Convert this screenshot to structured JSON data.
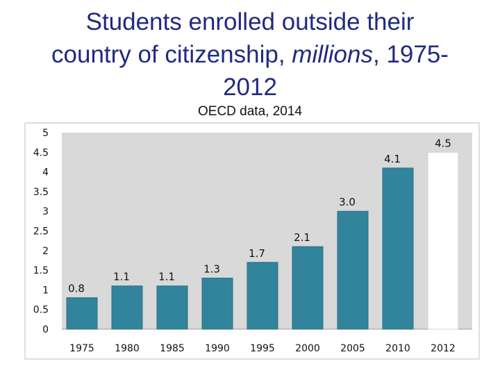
{
  "slide": {
    "title_lines": [
      "Students enrolled outside their",
      "country of citizenship, ",
      "millions",
      ", 1975-",
      "2012"
    ],
    "subtitle": "OECD data, 2014"
  },
  "colors": {
    "title": "#1f2a80",
    "bar": "#31849b",
    "bar_highlight": "#ffffff",
    "plot_bg": "#d9d9d9"
  },
  "chart_data": {
    "type": "bar",
    "categories": [
      "1975",
      "1980",
      "1985",
      "1990",
      "1995",
      "2000",
      "2005",
      "2010",
      "2012"
    ],
    "values": [
      0.8,
      1.1,
      1.1,
      1.3,
      1.7,
      2.1,
      3.0,
      4.1,
      4.5
    ],
    "value_labels": [
      "0.8",
      "1.1",
      "1.1",
      "1.3",
      "1.7",
      "2.1",
      "3.0",
      "4.1",
      "4.5"
    ],
    "highlighted_category": "2012",
    "title": "Students enrolled outside their country of citizenship, millions, 1975-2012",
    "subtitle": "OECD data, 2014",
    "xlabel": "",
    "ylabel": "",
    "ylim": [
      0,
      5
    ],
    "yticks": [
      "0",
      "0.5",
      "1",
      "1.5",
      "2",
      "2.5",
      "3",
      "3.5",
      "4",
      "4.5",
      "5"
    ],
    "grid": false,
    "legend": "none"
  }
}
